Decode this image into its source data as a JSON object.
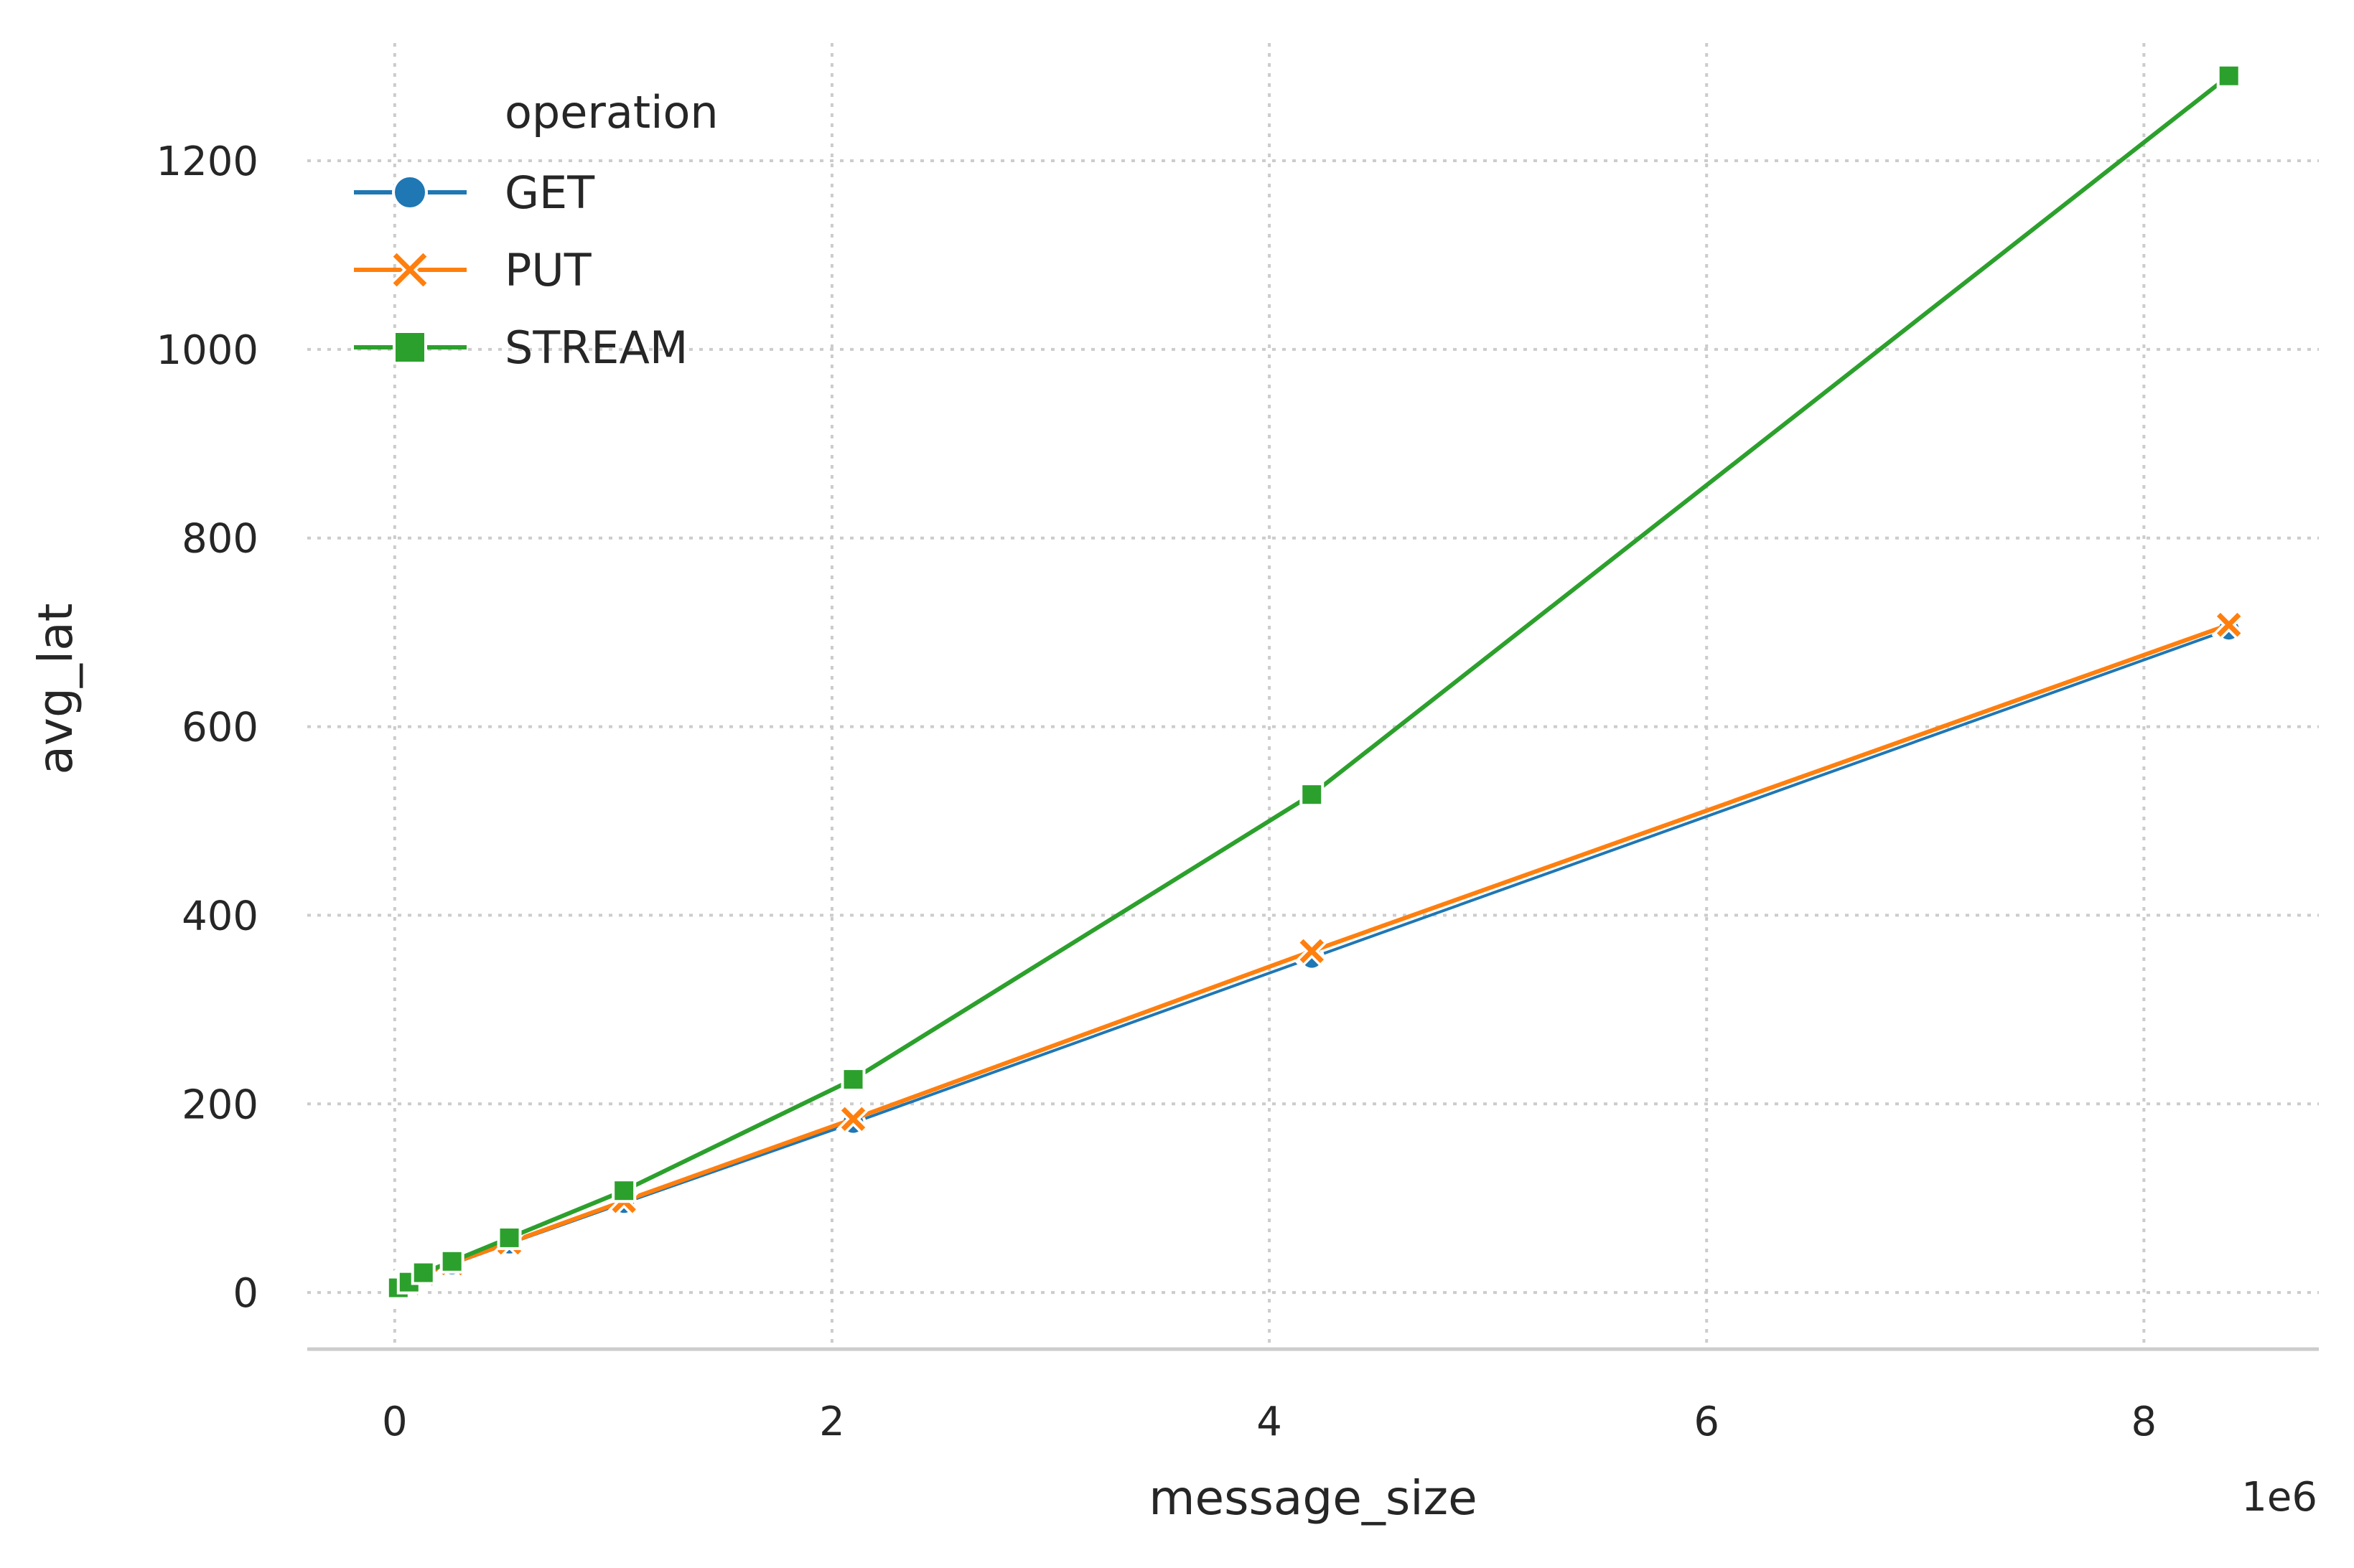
{
  "chart_data": {
    "type": "line",
    "xlabel": "message_size",
    "ylabel": "avg_lat",
    "x_offset_label": "1e6",
    "xlim": [
      -400000,
      8800000
    ],
    "ylim": [
      -60,
      1340
    ],
    "x_ticks": [
      0,
      2000000,
      4000000,
      6000000,
      8000000
    ],
    "x_tick_labels": [
      "0",
      "2",
      "4",
      "6",
      "8"
    ],
    "y_ticks": [
      0,
      200,
      400,
      600,
      800,
      1000,
      1200
    ],
    "y_tick_labels": [
      "0",
      "200",
      "400",
      "600",
      "800",
      "1000",
      "1200"
    ],
    "grid": true,
    "legend": {
      "title": "operation",
      "position": "upper-left"
    },
    "series": [
      {
        "name": "GET",
        "color": "#1f77b4",
        "marker": "circle",
        "x": [
          1024,
          4096,
          16384,
          65536,
          131072,
          262144,
          524288,
          1048576,
          2097152,
          4194304,
          8388608
        ],
        "y": [
          1,
          2,
          4,
          10,
          19,
          30,
          52,
          95,
          180,
          355,
          703
        ]
      },
      {
        "name": "PUT",
        "color": "#ff7f0e",
        "marker": "x",
        "x": [
          1024,
          4096,
          16384,
          65536,
          131072,
          262144,
          524288,
          1048576,
          2097152,
          4194304,
          8388608
        ],
        "y": [
          1,
          2,
          4,
          10,
          20,
          31,
          53,
          97,
          184,
          362,
          708
        ]
      },
      {
        "name": "STREAM",
        "color": "#2ca02c",
        "marker": "square",
        "x": [
          1024,
          4096,
          16384,
          65536,
          131072,
          262144,
          524288,
          1048576,
          2097152,
          4194304,
          8388608
        ],
        "y": [
          2,
          3,
          5,
          11,
          21,
          33,
          58,
          108,
          226,
          528,
          1290
        ]
      }
    ]
  }
}
